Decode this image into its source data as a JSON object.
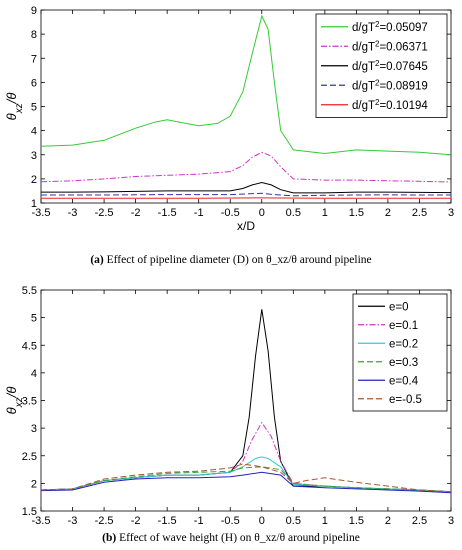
{
  "chart_data": [
    {
      "type": "line",
      "title": "",
      "xlabel": "x/D",
      "ylabel": "θ_xz/θ",
      "xlim": [
        -3.5,
        3
      ],
      "ylim": [
        1,
        9
      ],
      "xticks": [
        "-3.5",
        "-3",
        "-2.5",
        "-2",
        "-1.5",
        "-1",
        "-0.5",
        "0",
        "0.5",
        "1",
        "1.5",
        "2",
        "2.5",
        "3"
      ],
      "yticks": [
        "1",
        "2",
        "3",
        "4",
        "5",
        "6",
        "7",
        "8",
        "9"
      ],
      "grid": false,
      "legend_position": "top-right",
      "caption_label": "(a)",
      "caption_text": "Effect of pipeline diameter (D) on θ_xz/θ around pipeline",
      "series": [
        {
          "name": "d/gT²=0.05097",
          "color": "#33cc33",
          "dash": "solid",
          "x": [
            -3.5,
            -3,
            -2.5,
            -2,
            -1.7,
            -1.5,
            -1.3,
            -1,
            -0.7,
            -0.5,
            -0.3,
            -0.15,
            0,
            0.1,
            0.2,
            0.3,
            0.5,
            1,
            1.5,
            2,
            2.5,
            3
          ],
          "y": [
            3.35,
            3.4,
            3.6,
            4.1,
            4.35,
            4.45,
            4.35,
            4.2,
            4.3,
            4.6,
            5.6,
            7.2,
            8.75,
            8.2,
            6.0,
            4.0,
            3.2,
            3.05,
            3.2,
            3.15,
            3.1,
            3.0
          ]
        },
        {
          "name": "d/gT²=0.06371",
          "color": "#cc33cc",
          "dash": "dashdot",
          "x": [
            -3.5,
            -3,
            -2.5,
            -2,
            -1.5,
            -1,
            -0.5,
            -0.3,
            -0.15,
            0,
            0.15,
            0.3,
            0.5,
            1,
            1.5,
            2,
            2.5,
            3
          ],
          "y": [
            1.88,
            1.92,
            2.0,
            2.1,
            2.15,
            2.2,
            2.3,
            2.55,
            2.9,
            3.1,
            2.95,
            2.5,
            2.0,
            1.95,
            1.95,
            1.92,
            1.9,
            1.87
          ]
        },
        {
          "name": "d/gT²=0.07645",
          "color": "#000000",
          "dash": "solid",
          "x": [
            -3.5,
            -3,
            -2.5,
            -2,
            -1.5,
            -1,
            -0.5,
            -0.3,
            -0.15,
            0,
            0.15,
            0.3,
            0.5,
            1,
            1.5,
            2,
            2.5,
            3
          ],
          "y": [
            1.45,
            1.45,
            1.46,
            1.48,
            1.5,
            1.5,
            1.5,
            1.6,
            1.75,
            1.85,
            1.75,
            1.55,
            1.42,
            1.42,
            1.45,
            1.45,
            1.44,
            1.43
          ]
        },
        {
          "name": "d/gT²=0.08919",
          "color": "#3333aa",
          "dash": "dashed",
          "x": [
            -3.5,
            -3,
            -2.5,
            -2,
            -1.5,
            -1,
            -0.5,
            -0.2,
            0,
            0.2,
            0.5,
            1,
            1.5,
            2,
            2.5,
            3
          ],
          "y": [
            1.33,
            1.33,
            1.33,
            1.34,
            1.35,
            1.35,
            1.35,
            1.38,
            1.4,
            1.35,
            1.3,
            1.32,
            1.33,
            1.34,
            1.33,
            1.33
          ]
        },
        {
          "name": "d/gT²=0.10194",
          "color": "#ee2222",
          "dash": "solid",
          "x": [
            -3.5,
            -3,
            -2,
            -1,
            0,
            1,
            2,
            3
          ],
          "y": [
            1.2,
            1.2,
            1.2,
            1.2,
            1.21,
            1.2,
            1.2,
            1.2
          ]
        }
      ]
    },
    {
      "type": "line",
      "title": "",
      "xlabel": "",
      "ylabel": "θ_xz/θ",
      "xlim": [
        -3.5,
        3
      ],
      "ylim": [
        1.5,
        5.5
      ],
      "xticks": [
        "-3.5",
        "-3",
        "-2.5",
        "-2",
        "-1.5",
        "-1",
        "-0.5",
        "0",
        "0.5",
        "1",
        "1.5",
        "2",
        "2.5",
        "3"
      ],
      "yticks": [
        "1.5",
        "2",
        "2.5",
        "3",
        "3.5",
        "4",
        "4.5",
        "5",
        "5.5"
      ],
      "grid": false,
      "legend_position": "top-right",
      "caption_label": "(b)",
      "caption_text": "Effect of wave height (H) on θ_xz/θ around pipeline",
      "series": [
        {
          "name": "e=0",
          "color": "#000000",
          "dash": "solid",
          "x": [
            -3.5,
            -3,
            -2.5,
            -2,
            -1.5,
            -1,
            -0.5,
            -0.3,
            -0.2,
            -0.1,
            0,
            0.1,
            0.2,
            0.3,
            0.5,
            1,
            1.5,
            2,
            2.5,
            3
          ],
          "y": [
            1.88,
            1.9,
            2.05,
            2.1,
            2.15,
            2.15,
            2.2,
            2.5,
            3.2,
            4.3,
            5.15,
            4.4,
            3.2,
            2.4,
            1.95,
            1.95,
            1.92,
            1.9,
            1.88,
            1.85
          ]
        },
        {
          "name": "e=0.1",
          "color": "#cc33cc",
          "dash": "dashdot",
          "x": [
            -3.5,
            -3,
            -2.5,
            -2,
            -1.5,
            -1,
            -0.5,
            -0.3,
            -0.15,
            0,
            0.15,
            0.3,
            0.5,
            1,
            1.5,
            2,
            2.5,
            3
          ],
          "y": [
            1.88,
            1.9,
            2.05,
            2.1,
            2.15,
            2.15,
            2.2,
            2.4,
            2.8,
            3.1,
            2.85,
            2.4,
            2.0,
            1.95,
            1.92,
            1.9,
            1.88,
            1.85
          ]
        },
        {
          "name": "e=0.2",
          "color": "#33cccc",
          "dash": "solid",
          "x": [
            -3.5,
            -3,
            -2.5,
            -2,
            -1.5,
            -1,
            -0.5,
            -0.3,
            -0.1,
            0,
            0.1,
            0.3,
            0.5,
            1,
            1.5,
            2,
            2.5,
            3
          ],
          "y": [
            1.88,
            1.9,
            2.05,
            2.1,
            2.15,
            2.15,
            2.2,
            2.3,
            2.45,
            2.48,
            2.45,
            2.3,
            1.98,
            1.95,
            1.92,
            1.9,
            1.88,
            1.85
          ]
        },
        {
          "name": "e=0.3",
          "color": "#33aa33",
          "dash": "dashed",
          "x": [
            -3.5,
            -3,
            -2.5,
            -2,
            -1.5,
            -1,
            -0.5,
            -0.3,
            0,
            0.3,
            0.5,
            1,
            1.5,
            2,
            2.5,
            3
          ],
          "y": [
            1.88,
            1.9,
            2.05,
            2.12,
            2.18,
            2.2,
            2.22,
            2.28,
            2.3,
            2.25,
            2.0,
            1.95,
            1.92,
            1.9,
            1.88,
            1.85
          ]
        },
        {
          "name": "e=0.4",
          "color": "#2222bb",
          "dash": "solid",
          "x": [
            -3.5,
            -3,
            -2.5,
            -2,
            -1.5,
            -1,
            -0.5,
            -0.3,
            0,
            0.3,
            0.5,
            1,
            1.5,
            2,
            2.5,
            3
          ],
          "y": [
            1.87,
            1.88,
            2.02,
            2.08,
            2.1,
            2.1,
            2.12,
            2.15,
            2.2,
            2.15,
            1.95,
            1.92,
            1.9,
            1.88,
            1.86,
            1.83
          ]
        },
        {
          "name": "e=-0.5",
          "color": "#aa5533",
          "dash": "dashed",
          "x": [
            -3.5,
            -3,
            -2.5,
            -2,
            -1.5,
            -1,
            -0.5,
            -0.3,
            0,
            0.3,
            0.5,
            0.7,
            1,
            1.5,
            2,
            2.5,
            3
          ],
          "y": [
            1.88,
            1.9,
            2.08,
            2.15,
            2.2,
            2.22,
            2.28,
            2.35,
            2.3,
            2.2,
            2.0,
            2.05,
            2.1,
            2.02,
            1.95,
            1.88,
            1.85
          ]
        }
      ]
    }
  ]
}
